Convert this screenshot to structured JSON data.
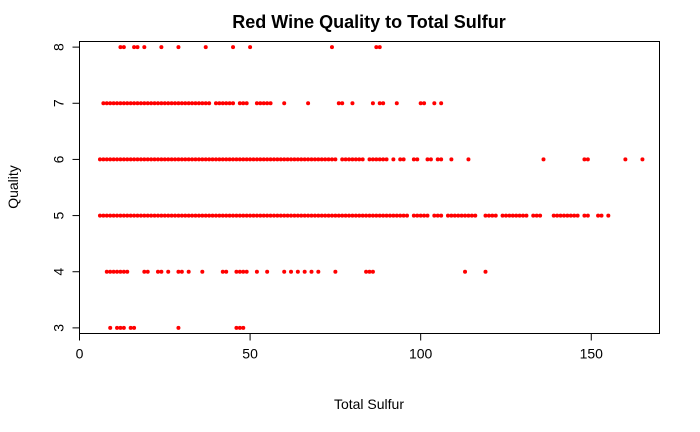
{
  "chart_data": {
    "type": "scatter",
    "title": "Red Wine Quality to Total Sulfur",
    "xlabel": "Total Sulfur",
    "ylabel": "Quality",
    "xlim": [
      0,
      170
    ],
    "ylim": [
      2.9,
      8.1
    ],
    "xticks": [
      0,
      50,
      100,
      150
    ],
    "yticks": [
      3,
      4,
      5,
      6,
      7,
      8
    ],
    "grid": false,
    "point_color": "#ff0000",
    "series": [
      {
        "quality": 8,
        "x": [
          12,
          13,
          16,
          17,
          19,
          24,
          29,
          37,
          45,
          50,
          74,
          87,
          88
        ]
      },
      {
        "quality": 7,
        "x": [
          7,
          8,
          9,
          10,
          11,
          12,
          13,
          14,
          15,
          16,
          17,
          18,
          19,
          20,
          21,
          22,
          23,
          24,
          25,
          26,
          27,
          28,
          29,
          30,
          31,
          32,
          33,
          34,
          35,
          36,
          37,
          38,
          40,
          41,
          42,
          43,
          44,
          45,
          47,
          48,
          49,
          52,
          53,
          54,
          55,
          56,
          60,
          67,
          76,
          77,
          80,
          86,
          88,
          89,
          93,
          100,
          101,
          104,
          106
        ]
      },
      {
        "quality": 6,
        "x": [
          6,
          7,
          8,
          9,
          10,
          11,
          12,
          13,
          14,
          15,
          16,
          17,
          18,
          19,
          20,
          21,
          22,
          23,
          24,
          25,
          26,
          27,
          28,
          29,
          30,
          31,
          32,
          33,
          34,
          35,
          36,
          37,
          38,
          39,
          40,
          41,
          42,
          43,
          44,
          45,
          46,
          47,
          48,
          49,
          50,
          51,
          52,
          53,
          54,
          55,
          56,
          57,
          58,
          59,
          60,
          61,
          62,
          63,
          64,
          65,
          66,
          67,
          68,
          69,
          70,
          71,
          72,
          73,
          74,
          75,
          77,
          78,
          79,
          80,
          81,
          82,
          83,
          85,
          86,
          87,
          88,
          89,
          90,
          92,
          94,
          95,
          98,
          99,
          102,
          103,
          105,
          106,
          109,
          114,
          136,
          148,
          149,
          160,
          165
        ]
      },
      {
        "quality": 5,
        "x": [
          6,
          7,
          8,
          9,
          10,
          11,
          12,
          13,
          14,
          15,
          16,
          17,
          18,
          19,
          20,
          21,
          22,
          23,
          24,
          25,
          26,
          27,
          28,
          29,
          30,
          31,
          32,
          33,
          34,
          35,
          36,
          37,
          38,
          39,
          40,
          41,
          42,
          43,
          44,
          45,
          46,
          47,
          48,
          49,
          50,
          51,
          52,
          53,
          54,
          55,
          56,
          57,
          58,
          59,
          60,
          61,
          62,
          63,
          64,
          65,
          66,
          67,
          68,
          69,
          70,
          71,
          72,
          73,
          74,
          75,
          76,
          77,
          78,
          79,
          80,
          81,
          82,
          83,
          84,
          85,
          86,
          87,
          88,
          89,
          90,
          91,
          92,
          93,
          94,
          95,
          96,
          98,
          99,
          100,
          101,
          102,
          104,
          105,
          106,
          108,
          109,
          110,
          111,
          112,
          113,
          114,
          115,
          116,
          119,
          120,
          121,
          122,
          124,
          125,
          126,
          127,
          128,
          129,
          130,
          131,
          133,
          134,
          135,
          139,
          140,
          141,
          142,
          143,
          144,
          145,
          146,
          148,
          149,
          152,
          153,
          155
        ]
      },
      {
        "quality": 4,
        "x": [
          8,
          9,
          10,
          11,
          12,
          13,
          14,
          19,
          20,
          23,
          24,
          26,
          29,
          30,
          32,
          36,
          42,
          43,
          46,
          47,
          48,
          49,
          52,
          55,
          60,
          62,
          64,
          66,
          68,
          70,
          75,
          84,
          85,
          86,
          113,
          119
        ]
      },
      {
        "quality": 3,
        "x": [
          9,
          11,
          12,
          13,
          15,
          16,
          29,
          46,
          47,
          48
        ]
      }
    ]
  }
}
